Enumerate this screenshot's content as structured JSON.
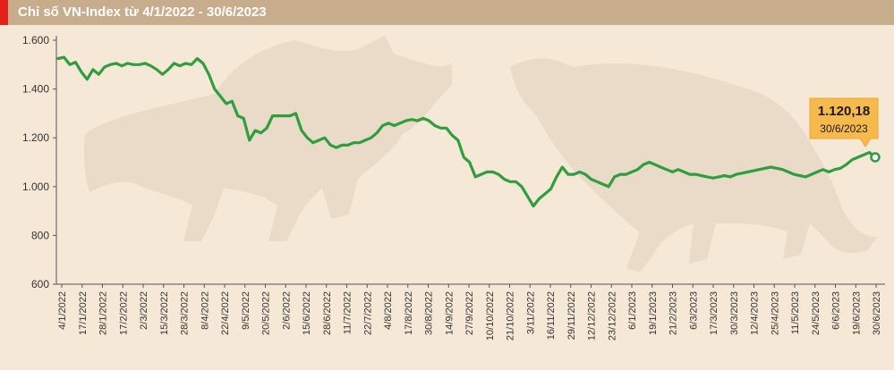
{
  "header": {
    "title": "Chỉ số VN-Index từ 4/1/2022 - 30/6/2023"
  },
  "colors": {
    "line": "#2e9e3f",
    "background": "#f5e8d6",
    "header": "#c8ad8c",
    "accent": "#e4201b",
    "callout": "#f6b94c",
    "silhouette": "#eadbc8"
  },
  "chart_data": {
    "type": "line",
    "title": "Chỉ số VN-Index từ 4/1/2022 - 30/6/2023",
    "xlabel": "",
    "ylabel": "",
    "ylim": [
      600,
      1600
    ],
    "yticks": [
      "1.600",
      "1.400",
      "1.200",
      "1.000",
      "800",
      "600"
    ],
    "ytick_values": [
      1600,
      1400,
      1200,
      1000,
      800,
      600
    ],
    "xticks": [
      "4/1/2022",
      "17/1/2022",
      "28/1/2022",
      "17/2/2022",
      "2/3/2022",
      "15/3/2022",
      "28/3/2022",
      "8/4/2022",
      "22/4/2022",
      "9/5/2022",
      "20/5/2022",
      "2/6/2022",
      "15/6/2022",
      "28/6/2022",
      "11/7/2022",
      "22/7/2022",
      "4/8/2022",
      "17/8/2022",
      "30/8/2022",
      "14/9/2022",
      "27/9/2022",
      "10/10/2022",
      "21/10/2022",
      "3/11/2022",
      "16/11/2022",
      "29/11/2022",
      "12/12/2022",
      "23/12/2022",
      "6/1/2023",
      "19/1/2023",
      "21/2/2023",
      "6/3/2023",
      "17/3/2023",
      "30/3/2023",
      "12/4/2023",
      "25/4/2023",
      "11/5/2023",
      "24/5/2023",
      "6/6/2023",
      "19/6/2023",
      "30/6/2023"
    ],
    "grid": false,
    "series": [
      {
        "values": [
          1525,
          1530,
          1500,
          1510,
          1470,
          1440,
          1480,
          1460,
          1490,
          1500,
          1505,
          1495,
          1505,
          1500,
          1500,
          1505,
          1495,
          1480,
          1460,
          1480,
          1505,
          1495,
          1505,
          1500,
          1525,
          1505,
          1460,
          1400,
          1370,
          1340,
          1350,
          1290,
          1280,
          1190,
          1230,
          1220,
          1240,
          1290,
          1290,
          1290,
          1290,
          1300,
          1230,
          1200,
          1180,
          1190,
          1200,
          1170,
          1160,
          1170,
          1170,
          1180,
          1180,
          1190,
          1200,
          1220,
          1250,
          1260,
          1250,
          1260,
          1270,
          1275,
          1270,
          1280,
          1270,
          1250,
          1240,
          1240,
          1210,
          1190,
          1120,
          1100,
          1040,
          1050,
          1060,
          1060,
          1050,
          1030,
          1020,
          1020,
          1000,
          960,
          920,
          950,
          970,
          990,
          1040,
          1080,
          1050,
          1050,
          1060,
          1050,
          1030,
          1020,
          1010,
          1000,
          1040,
          1050,
          1050,
          1060,
          1070,
          1090,
          1100,
          1090,
          1080,
          1070,
          1060,
          1070,
          1060,
          1050,
          1050,
          1045,
          1040,
          1035,
          1040,
          1045,
          1040,
          1050,
          1055,
          1060,
          1065,
          1070,
          1075,
          1080,
          1075,
          1070,
          1060,
          1050,
          1045,
          1040,
          1050,
          1060,
          1070,
          1060,
          1070,
          1075,
          1090,
          1110,
          1120,
          1130,
          1140,
          1120.18
        ]
      }
    ],
    "annotation": {
      "value": "1.120,18",
      "date": "30/6/2023"
    }
  }
}
